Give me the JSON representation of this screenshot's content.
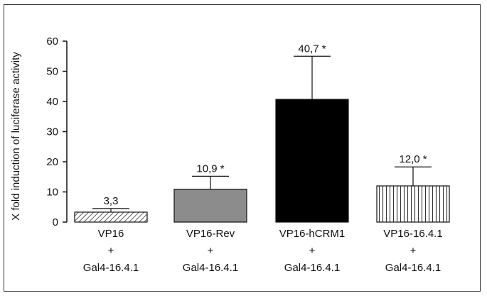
{
  "chart_data": {
    "type": "bar",
    "ylabel": "X fold induction of luciferase activity",
    "ylim": [
      0,
      60
    ],
    "yticks": [
      "0",
      "10",
      "20",
      "30",
      "40",
      "50",
      "60"
    ],
    "categories": [
      [
        "VP16",
        "+",
        "Gal4-16.4.1"
      ],
      [
        "VP16-Rev",
        "+",
        "Gal4-16.4.1"
      ],
      [
        "VP16-hCRM1",
        "+",
        "Gal4-16.4.1"
      ],
      [
        "VP16-16.4.1",
        "+",
        "Gal4-16.4.1"
      ]
    ],
    "values": [
      3.3,
      10.9,
      40.7,
      12.0
    ],
    "errors": [
      1.2,
      4.3,
      14.3,
      6.3
    ],
    "data_labels": [
      "3,3",
      "10,9 *",
      "40,7 *",
      "12,0 *"
    ],
    "bar_fills": [
      "diagonal-hatch",
      "#8c8c8c",
      "#000000",
      "vertical-hatch"
    ],
    "grid": false,
    "legend": "none"
  }
}
